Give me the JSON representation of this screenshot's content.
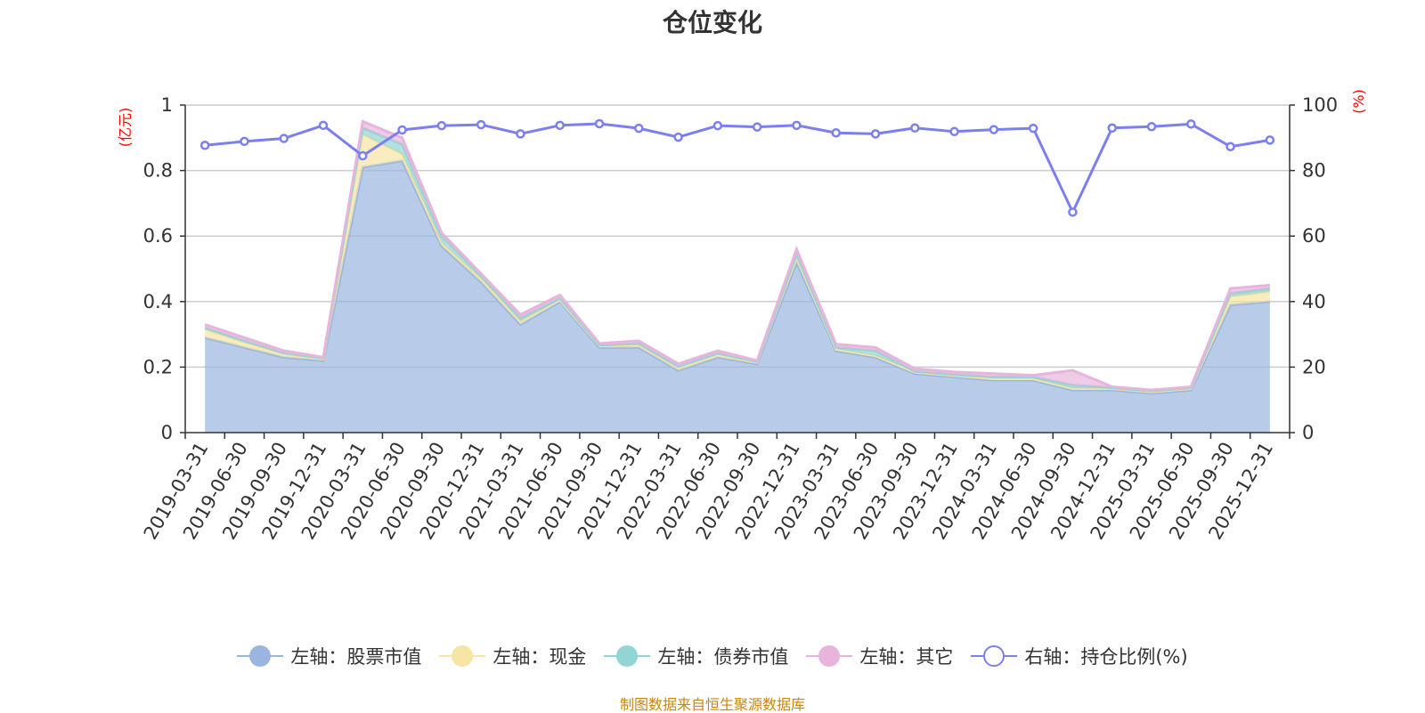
{
  "title": "仓位变化",
  "source_note": "制图数据来自恒生聚源数据库",
  "chart_data": {
    "type": "area",
    "title": "仓位变化",
    "x": [
      "2019-03-31",
      "2019-06-30",
      "2019-09-30",
      "2019-12-31",
      "2020-03-31",
      "2020-06-30",
      "2020-09-30",
      "2020-12-31",
      "2021-03-31",
      "2021-06-30",
      "2021-09-30",
      "2021-12-31",
      "2022-03-31",
      "2022-06-30",
      "2022-09-30",
      "2022-12-31",
      "2023-03-31",
      "2023-06-30",
      "2023-09-30",
      "2023-12-31",
      "2024-03-31",
      "2024-06-30",
      "2024-09-30",
      "2024-12-31",
      "2025-03-31",
      "2025-06-30",
      "2025-09-30",
      "2025-12-31"
    ],
    "left_axis": {
      "unit": "(亿元)",
      "ylim": [
        0,
        1
      ],
      "ticks": [
        "0",
        "0.2",
        "0.4",
        "0.6",
        "0.8",
        "1"
      ]
    },
    "right_axis": {
      "unit": "(%)",
      "ylim": [
        0,
        100
      ],
      "ticks": [
        "0",
        "20",
        "40",
        "60",
        "80",
        "100"
      ]
    },
    "grid": true,
    "legend_position": "bottom",
    "series": [
      {
        "name": "左轴：股票市值",
        "axis": "left",
        "stacked": true,
        "color": "#9ab6e0",
        "values": [
          0.29,
          0.26,
          0.23,
          0.22,
          0.81,
          0.83,
          0.57,
          0.46,
          0.33,
          0.4,
          0.26,
          0.26,
          0.19,
          0.23,
          0.21,
          0.52,
          0.25,
          0.23,
          0.18,
          0.17,
          0.16,
          0.16,
          0.13,
          0.13,
          0.12,
          0.13,
          0.39,
          0.4
        ]
      },
      {
        "name": "左轴：现金",
        "axis": "left",
        "stacked": true,
        "color": "#f6e5a5",
        "values": [
          0.025,
          0.015,
          0.01,
          0.005,
          0.1,
          0.02,
          0.01,
          0.01,
          0.01,
          0.005,
          0.005,
          0.01,
          0.01,
          0.01,
          0.005,
          0.02,
          0.005,
          0.005,
          0.005,
          0.005,
          0.005,
          0.005,
          0.005,
          0.005,
          0.005,
          0.005,
          0.025,
          0.03
        ]
      },
      {
        "name": "左轴：债券市值",
        "axis": "left",
        "stacked": true,
        "color": "#93d4d4",
        "values": [
          0.005,
          0.005,
          0.003,
          0.002,
          0.02,
          0.03,
          0.02,
          0.01,
          0.01,
          0.005,
          0.002,
          0.002,
          0.002,
          0.002,
          0.002,
          0.005,
          0.005,
          0.015,
          0.002,
          0.002,
          0.005,
          0.005,
          0.01,
          0.002,
          0.002,
          0.002,
          0.01,
          0.01
        ]
      },
      {
        "name": "左轴：其它",
        "axis": "left",
        "stacked": true,
        "color": "#e7b5dc",
        "values": [
          0.01,
          0.01,
          0.007,
          0.003,
          0.02,
          0.02,
          0.01,
          0.005,
          0.01,
          0.01,
          0.005,
          0.008,
          0.008,
          0.008,
          0.003,
          0.015,
          0.01,
          0.01,
          0.008,
          0.008,
          0.01,
          0.005,
          0.045,
          0.003,
          0.003,
          0.003,
          0.015,
          0.01
        ]
      },
      {
        "name": "右轴：持仓比例(%)",
        "axis": "right",
        "stacked": false,
        "color": "#7b7ff0",
        "values": [
          87.7,
          88.9,
          89.8,
          93.8,
          84.5,
          92.4,
          93.7,
          94,
          91.2,
          93.8,
          94.3,
          92.9,
          90.2,
          93.7,
          93.3,
          93.8,
          91.5,
          91.2,
          93,
          91.9,
          92.5,
          92.9,
          67.3,
          93,
          93.4,
          94.2,
          87.3,
          89.3
        ]
      }
    ]
  }
}
